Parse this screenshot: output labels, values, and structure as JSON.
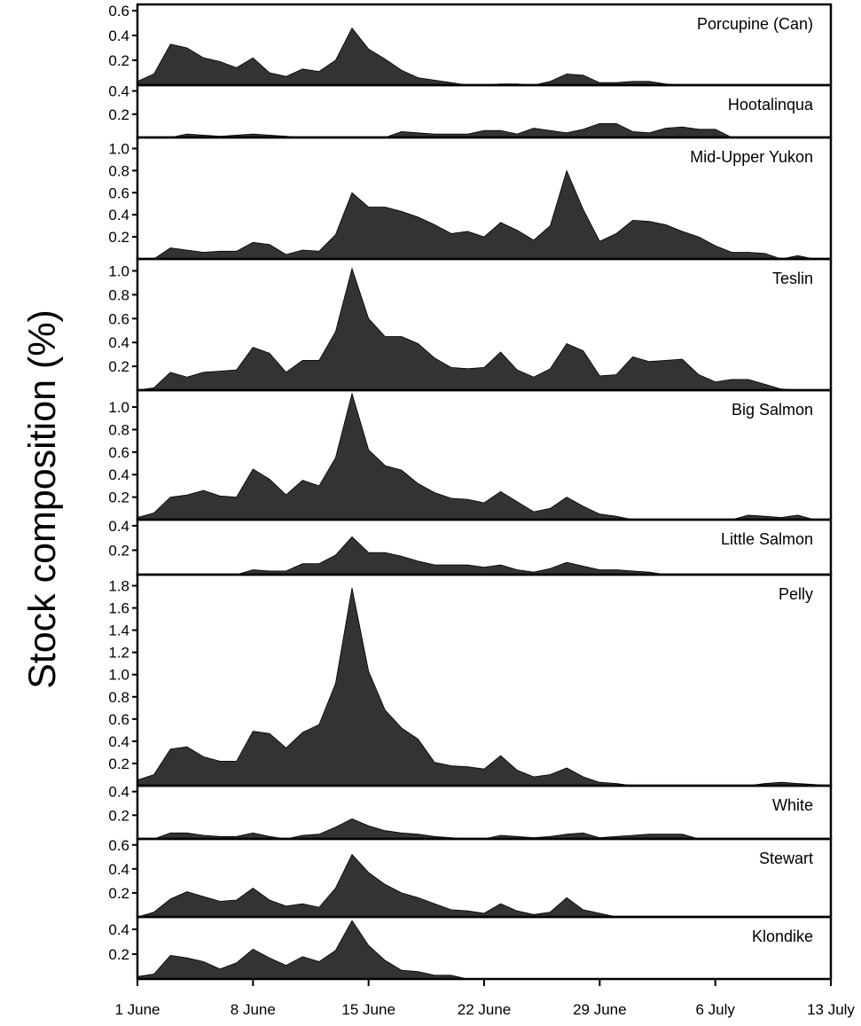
{
  "chart_data": {
    "type": "area",
    "ylabel": "Stock composition (%)",
    "x_tick_labels": [
      "1 June",
      "8 June",
      "15 June",
      "22 June",
      "29 June",
      "6 July",
      "13 July"
    ],
    "x_tick_days": [
      0,
      7,
      14,
      21,
      28,
      35,
      42
    ],
    "x_days": [
      0,
      1,
      2,
      3,
      4,
      5,
      6,
      7,
      8,
      9,
      10,
      11,
      12,
      13,
      14,
      15,
      16,
      17,
      18,
      19,
      20,
      21,
      22,
      23,
      24,
      25,
      26,
      27,
      28,
      29,
      30,
      31,
      32,
      33,
      34,
      35,
      36,
      37,
      38,
      39,
      40,
      41,
      42
    ],
    "panels": [
      {
        "name": "Porcupine (Can)",
        "ylim": [
          0,
          0.65
        ],
        "yticks": [
          "0.2",
          "0.4",
          "0.6"
        ],
        "ytick_values": [
          0.2,
          0.4,
          0.6
        ],
        "values": [
          0.03,
          0.09,
          0.33,
          0.3,
          0.22,
          0.19,
          0.14,
          0.22,
          0.1,
          0.07,
          0.13,
          0.11,
          0.2,
          0.46,
          0.29,
          0.21,
          0.12,
          0.06,
          0.04,
          0.02,
          0.0,
          0.0,
          0.01,
          0.01,
          0.0,
          0.03,
          0.09,
          0.08,
          0.02,
          0.02,
          0.03,
          0.03,
          0.01,
          0.0,
          0.0,
          0.0,
          0.0,
          0.0,
          0.0,
          0.0,
          0.0,
          0.0,
          0.0
        ]
      },
      {
        "name": "Hootalinqua",
        "ylim": [
          0,
          0.45
        ],
        "yticks": [
          "0.2",
          "0.4"
        ],
        "ytick_values": [
          0.2,
          0.4
        ],
        "values": [
          0.0,
          0.0,
          0.0,
          0.03,
          0.02,
          0.01,
          0.02,
          0.03,
          0.02,
          0.01,
          0.0,
          0.0,
          0.0,
          0.0,
          0.0,
          0.0,
          0.05,
          0.04,
          0.03,
          0.03,
          0.03,
          0.06,
          0.06,
          0.03,
          0.08,
          0.06,
          0.04,
          0.07,
          0.12,
          0.12,
          0.05,
          0.04,
          0.08,
          0.09,
          0.07,
          0.07,
          0.0,
          0.0,
          0.0,
          0.0,
          0.0,
          0.0,
          0.0
        ]
      },
      {
        "name": "Mid-Upper Yukon",
        "ylim": [
          0,
          1.1
        ],
        "yticks": [
          "0.2",
          "0.4",
          "0.6",
          "0.8",
          "1.0"
        ],
        "ytick_values": [
          0.2,
          0.4,
          0.6,
          0.8,
          1.0
        ],
        "values": [
          0.0,
          0.0,
          0.1,
          0.08,
          0.06,
          0.07,
          0.07,
          0.15,
          0.13,
          0.04,
          0.08,
          0.07,
          0.22,
          0.6,
          0.47,
          0.47,
          0.43,
          0.38,
          0.31,
          0.23,
          0.25,
          0.2,
          0.33,
          0.26,
          0.17,
          0.3,
          0.8,
          0.45,
          0.16,
          0.23,
          0.35,
          0.34,
          0.31,
          0.25,
          0.2,
          0.12,
          0.06,
          0.06,
          0.05,
          0.0,
          0.03,
          0.0,
          0.0
        ]
      },
      {
        "name": "Teslin",
        "ylim": [
          0,
          1.1
        ],
        "yticks": [
          "0.2",
          "0.4",
          "0.6",
          "0.8",
          "1.0"
        ],
        "ytick_values": [
          0.2,
          0.4,
          0.6,
          0.8,
          1.0
        ],
        "values": [
          0.0,
          0.02,
          0.15,
          0.11,
          0.15,
          0.16,
          0.17,
          0.36,
          0.31,
          0.15,
          0.25,
          0.25,
          0.49,
          1.02,
          0.6,
          0.45,
          0.45,
          0.39,
          0.27,
          0.19,
          0.18,
          0.19,
          0.32,
          0.17,
          0.11,
          0.18,
          0.39,
          0.33,
          0.12,
          0.13,
          0.28,
          0.24,
          0.25,
          0.26,
          0.13,
          0.07,
          0.09,
          0.09,
          0.05,
          0.01,
          0.0,
          0.0,
          0.0
        ]
      },
      {
        "name": "Big Salmon",
        "ylim": [
          0,
          1.15
        ],
        "yticks": [
          "0.2",
          "0.4",
          "0.6",
          "0.8",
          "1.0"
        ],
        "ytick_values": [
          0.2,
          0.4,
          0.6,
          0.8,
          1.0
        ],
        "values": [
          0.02,
          0.06,
          0.2,
          0.22,
          0.26,
          0.21,
          0.2,
          0.45,
          0.36,
          0.22,
          0.35,
          0.3,
          0.55,
          1.12,
          0.62,
          0.48,
          0.44,
          0.32,
          0.24,
          0.19,
          0.18,
          0.15,
          0.25,
          0.16,
          0.07,
          0.1,
          0.2,
          0.12,
          0.05,
          0.03,
          0.0,
          0.0,
          0.0,
          0.0,
          0.0,
          0.0,
          0.0,
          0.04,
          0.03,
          0.02,
          0.04,
          0.0,
          0.0
        ]
      },
      {
        "name": "Little Salmon",
        "ylim": [
          0,
          0.45
        ],
        "yticks": [
          "0.2",
          "0.4"
        ],
        "ytick_values": [
          0.2,
          0.4
        ],
        "values": [
          0.0,
          0.0,
          0.0,
          0.0,
          0.0,
          0.0,
          0.0,
          0.04,
          0.03,
          0.03,
          0.09,
          0.09,
          0.16,
          0.31,
          0.18,
          0.18,
          0.15,
          0.11,
          0.08,
          0.08,
          0.08,
          0.06,
          0.08,
          0.04,
          0.02,
          0.05,
          0.1,
          0.07,
          0.04,
          0.04,
          0.03,
          0.02,
          0.0,
          0.0,
          0.0,
          0.0,
          0.0,
          0.0,
          0.0,
          0.0,
          0.0,
          0.0,
          0.0
        ]
      },
      {
        "name": "Pelly",
        "ylim": [
          0,
          1.9
        ],
        "yticks": [
          "0.2",
          "0.4",
          "0.6",
          "0.8",
          "1.0",
          "1.2",
          "1.4",
          "1.6",
          "1.8"
        ],
        "ytick_values": [
          0.2,
          0.4,
          0.6,
          0.8,
          1.0,
          1.2,
          1.4,
          1.6,
          1.8
        ],
        "values": [
          0.05,
          0.1,
          0.33,
          0.35,
          0.26,
          0.22,
          0.22,
          0.49,
          0.47,
          0.34,
          0.48,
          0.55,
          0.92,
          1.78,
          1.03,
          0.68,
          0.52,
          0.42,
          0.21,
          0.18,
          0.17,
          0.15,
          0.27,
          0.14,
          0.08,
          0.1,
          0.16,
          0.08,
          0.03,
          0.02,
          0.0,
          0.0,
          0.0,
          0.0,
          0.0,
          0.0,
          0.0,
          0.0,
          0.02,
          0.03,
          0.02,
          0.01,
          0.0
        ]
      },
      {
        "name": "White",
        "ylim": [
          0,
          0.45
        ],
        "yticks": [
          "0.2",
          "0.4"
        ],
        "ytick_values": [
          0.2,
          0.4
        ],
        "values": [
          0.0,
          0.0,
          0.05,
          0.05,
          0.03,
          0.02,
          0.02,
          0.05,
          0.02,
          0.0,
          0.03,
          0.04,
          0.1,
          0.17,
          0.11,
          0.07,
          0.05,
          0.04,
          0.02,
          0.01,
          0.0,
          0.0,
          0.03,
          0.02,
          0.01,
          0.02,
          0.04,
          0.05,
          0.01,
          0.02,
          0.03,
          0.04,
          0.04,
          0.04,
          0.0,
          0.0,
          0.0,
          0.0,
          0.0,
          0.0,
          0.0,
          0.0,
          0.0
        ]
      },
      {
        "name": "Stewart",
        "ylim": [
          0,
          0.65
        ],
        "yticks": [
          "0.2",
          "0.4",
          "0.6"
        ],
        "ytick_values": [
          0.2,
          0.4,
          0.6
        ],
        "values": [
          0.0,
          0.04,
          0.15,
          0.21,
          0.17,
          0.13,
          0.14,
          0.24,
          0.14,
          0.09,
          0.11,
          0.08,
          0.24,
          0.52,
          0.37,
          0.27,
          0.2,
          0.16,
          0.11,
          0.06,
          0.05,
          0.03,
          0.11,
          0.05,
          0.02,
          0.04,
          0.16,
          0.06,
          0.03,
          0.0,
          0.0,
          0.0,
          0.0,
          0.0,
          0.0,
          0.0,
          0.0,
          0.0,
          0.0,
          0.0,
          0.0,
          0.0,
          0.0
        ]
      },
      {
        "name": "Klondike",
        "ylim": [
          0,
          0.5
        ],
        "yticks": [
          "0.2",
          "0.4"
        ],
        "ytick_values": [
          0.2,
          0.4
        ],
        "values": [
          0.02,
          0.04,
          0.19,
          0.17,
          0.14,
          0.08,
          0.13,
          0.24,
          0.17,
          0.11,
          0.18,
          0.14,
          0.23,
          0.47,
          0.27,
          0.15,
          0.07,
          0.06,
          0.03,
          0.03,
          0.0,
          0.0,
          0.0,
          0.0,
          0.0,
          0.0,
          0.0,
          0.0,
          0.0,
          0.0,
          0.0,
          0.0,
          0.0,
          0.0,
          0.0,
          0.0,
          0.0,
          0.0,
          0.0,
          0.0,
          0.0,
          0.0,
          0.0
        ]
      }
    ],
    "fill_color": "#333333",
    "grid": false
  }
}
